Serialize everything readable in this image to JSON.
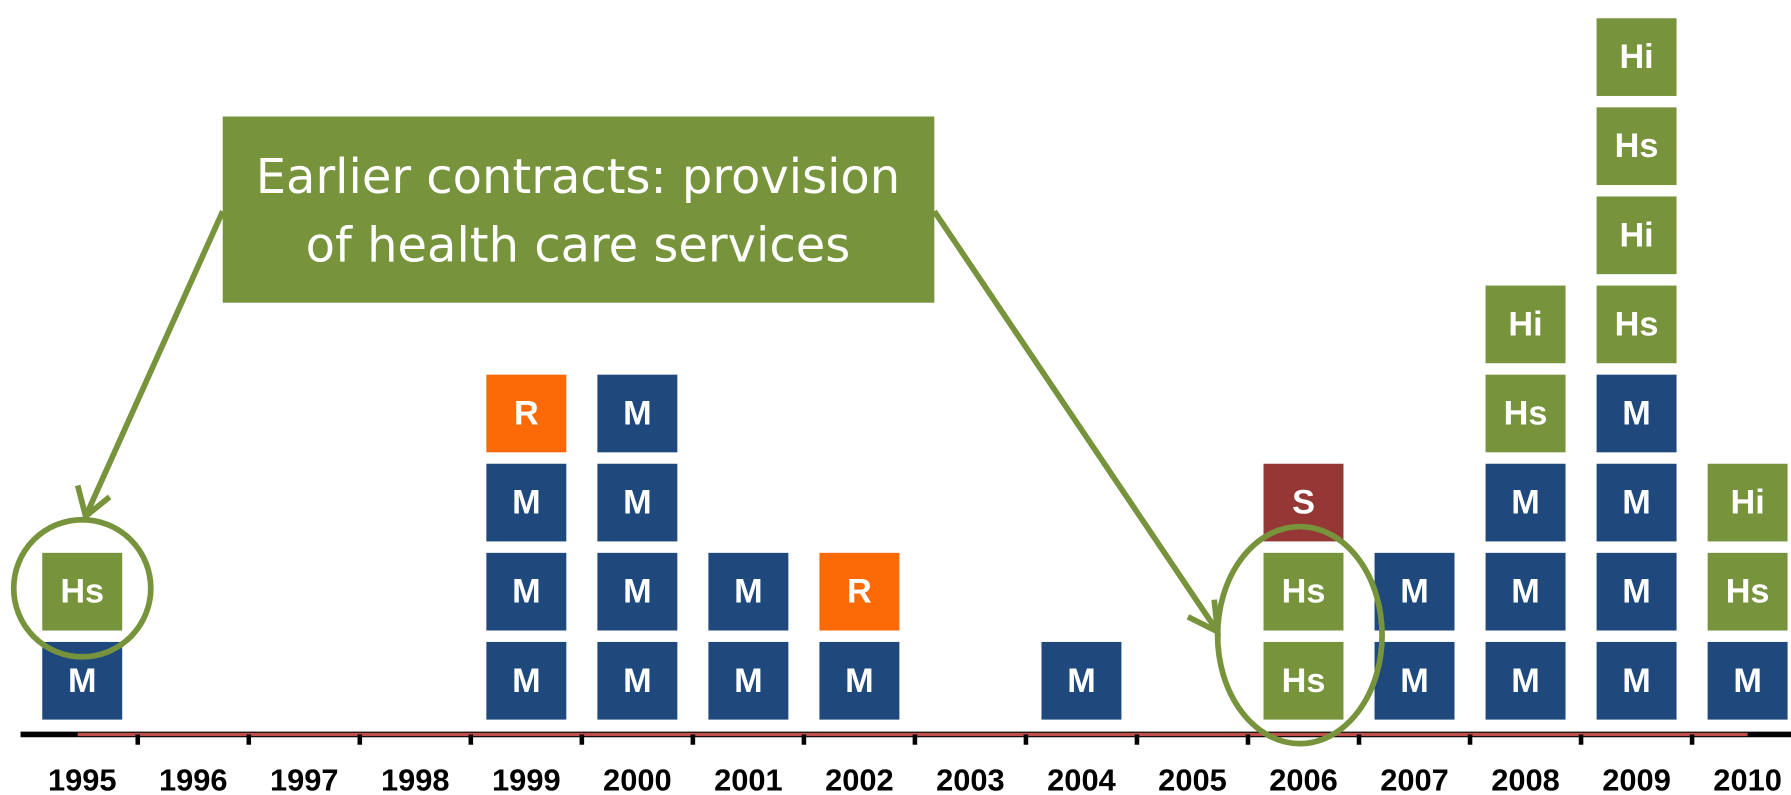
{
  "years": [
    "1995",
    "1996",
    "1997",
    "1998",
    "1999",
    "2000",
    "2001",
    "2002",
    "2003",
    "2004",
    "2005",
    "2006",
    "2007",
    "2008",
    "2009",
    "2010"
  ],
  "columns": [
    [
      "M",
      "Hs"
    ],
    [],
    [],
    [],
    [
      "M",
      "M",
      "M",
      "R"
    ],
    [
      "M",
      "M",
      "M",
      "M"
    ],
    [
      "M",
      "M"
    ],
    [
      "M",
      "R"
    ],
    [],
    [
      "M"
    ],
    [],
    [
      "Hs",
      "Hs",
      "S"
    ],
    [
      "M",
      "M"
    ],
    [
      "M",
      "M",
      "M",
      "Hs",
      "Hi"
    ],
    [
      "M",
      "M",
      "M",
      "M",
      "Hs",
      "Hi",
      "Hs",
      "Hi"
    ],
    [
      "M",
      "Hs",
      "Hi"
    ]
  ],
  "colors": {
    "M": "#1f497d",
    "Hs": "#77933c",
    "Hi": "#77933c",
    "R": "#fb6a07",
    "S": "#953735"
  },
  "callout": {
    "lines": [
      "Earlier contracts: provision",
      "of health care services"
    ],
    "color": "#77933c"
  }
}
